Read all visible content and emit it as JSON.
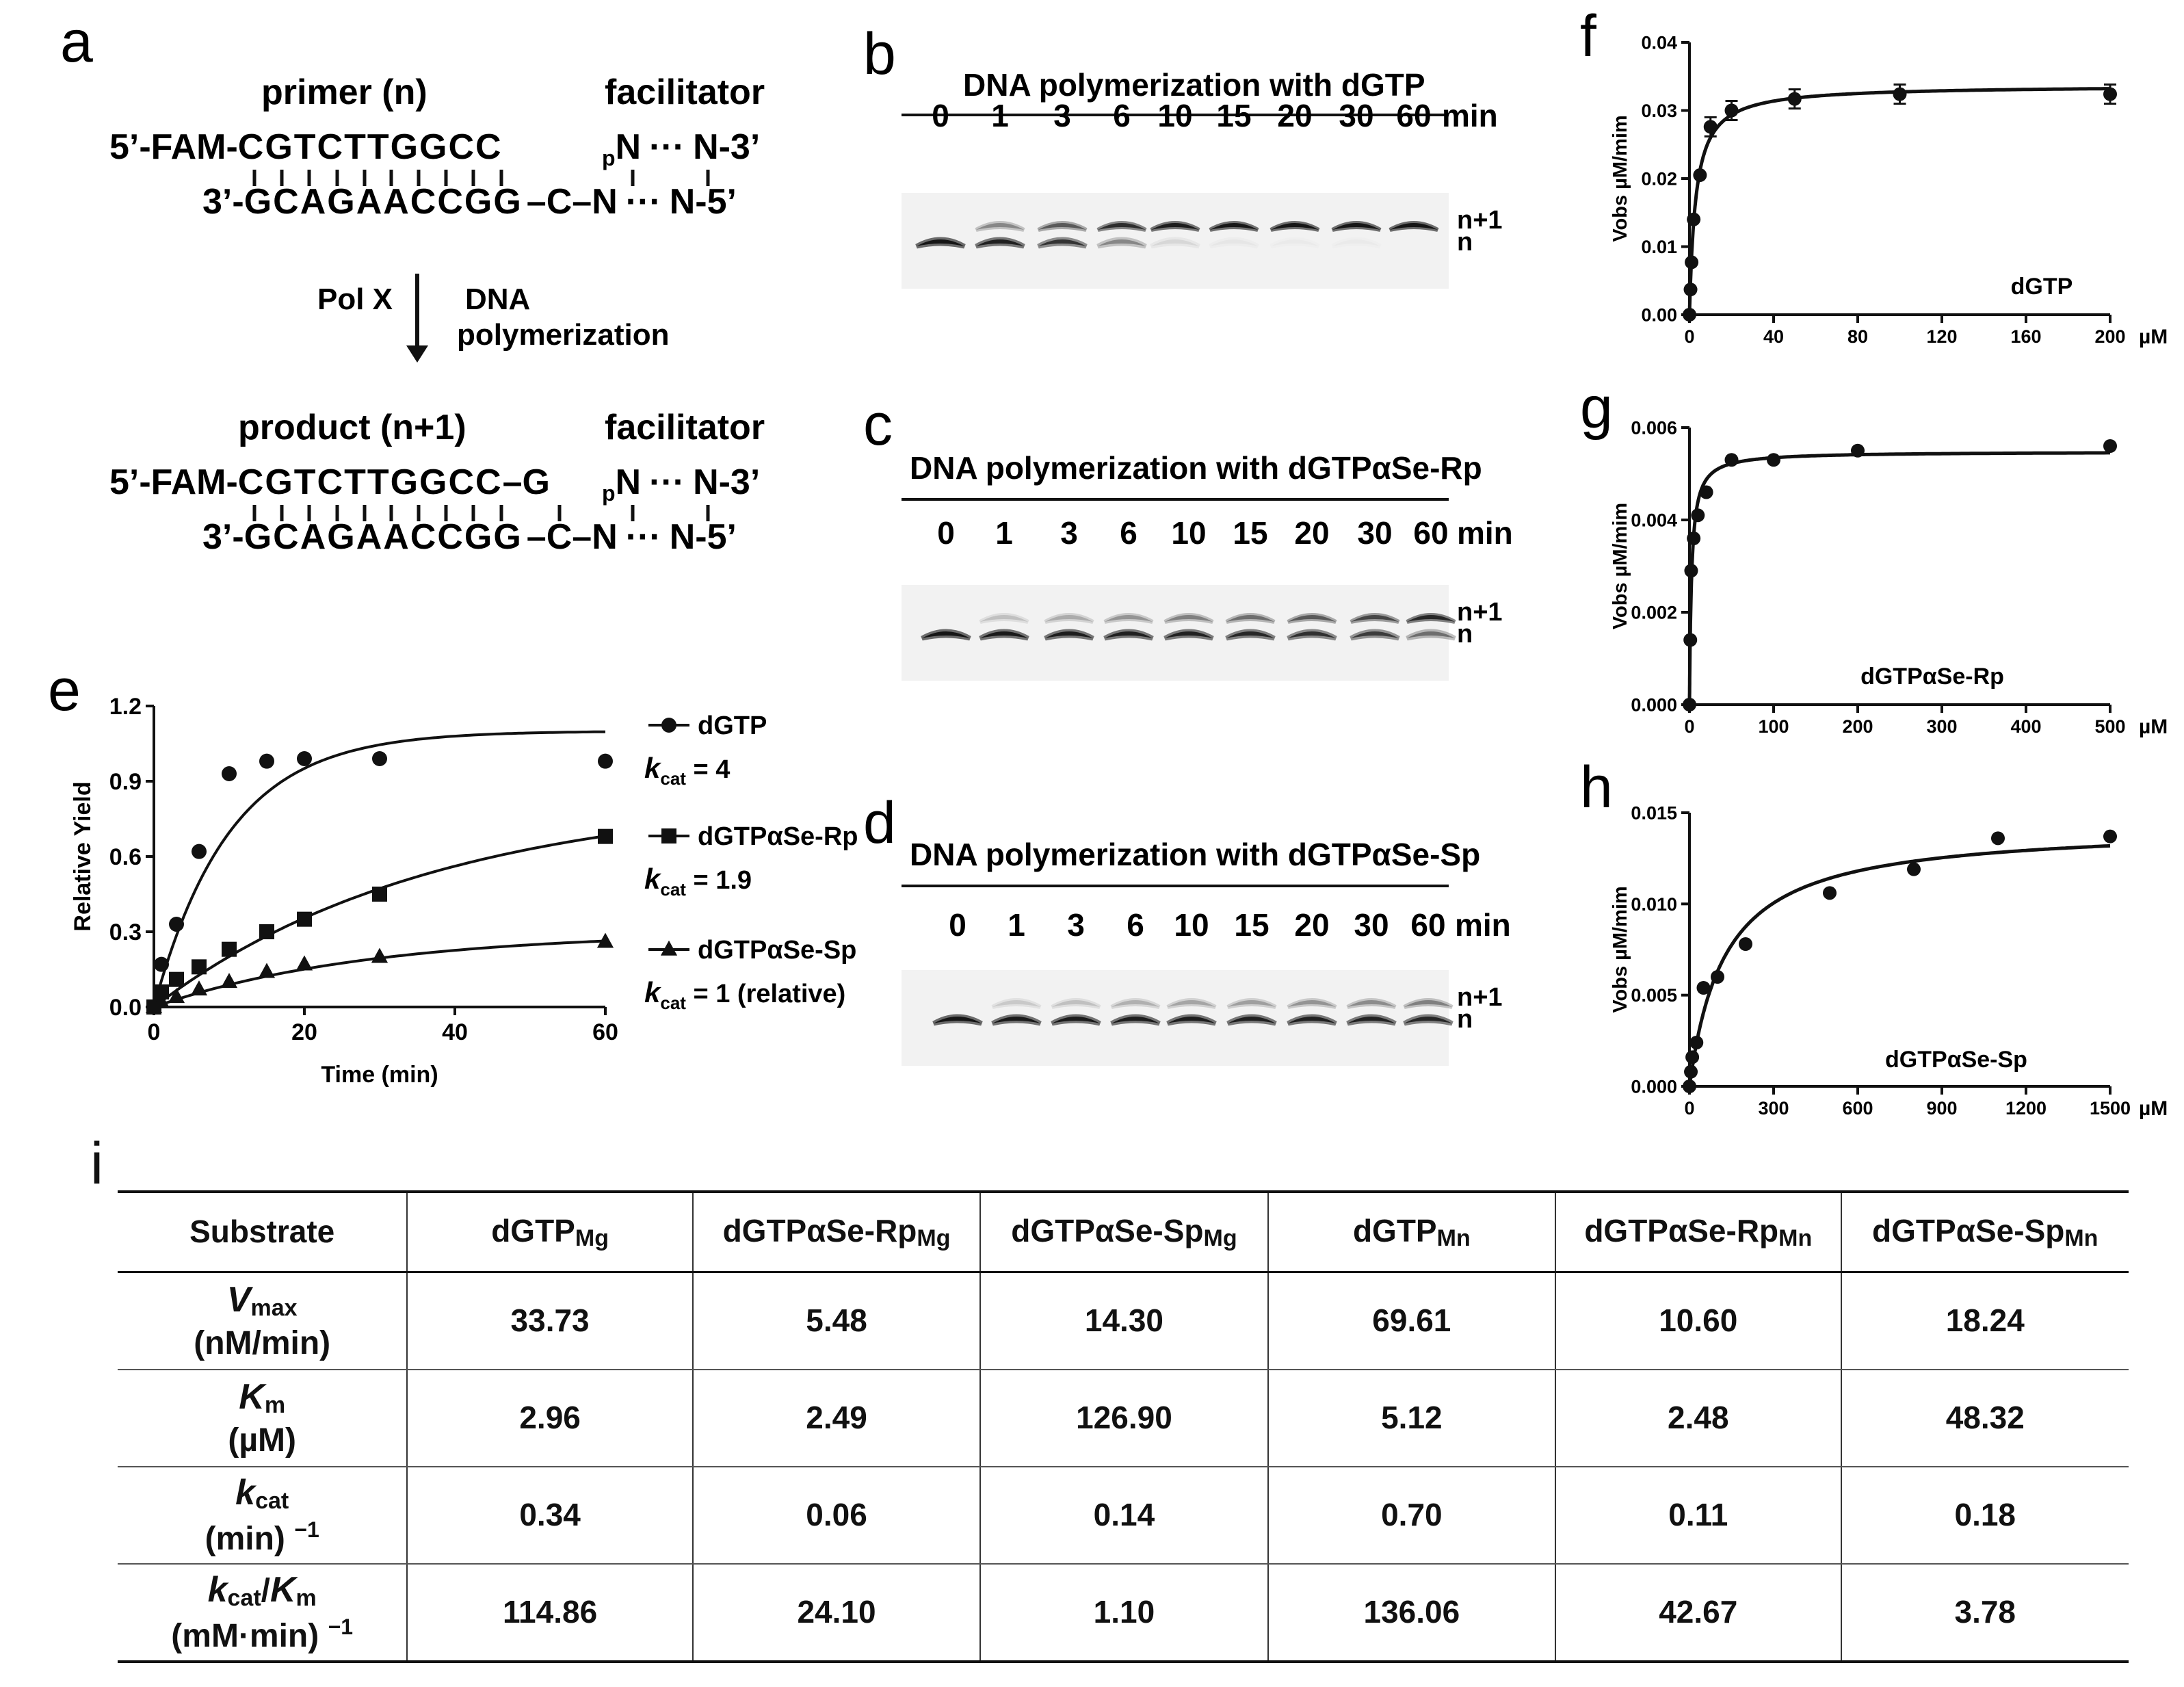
{
  "panel_labels": {
    "a": "a",
    "b": "b",
    "c": "c",
    "d": "d",
    "e": "e",
    "f": "f",
    "g": "g",
    "h": "h",
    "i": "i"
  },
  "panel_a": {
    "primer_label": "primer (n)",
    "facilitator_label": "facilitator",
    "product_label": "product (n+1)",
    "strand1_prefix": "5’-FAM-",
    "primer_seq": "CGTCTTGGCC",
    "template_prefix": "3’-",
    "template_seq": "GCAGAACCGG",
    "template_c": "C",
    "template_n": "N",
    "template_suffix": "N-5’",
    "facilitator_p": "p",
    "facilitator_n": "N",
    "facilitator_suffix": "N-3’",
    "dots": "···",
    "added_base": "G",
    "enzyme": "Pol X",
    "reaction_line1": "DNA",
    "reaction_line2": "polymerization"
  },
  "gels": [
    {
      "title": "DNA polymerization with dGTP",
      "times": [
        "0",
        "1",
        "3",
        "6",
        "10",
        "15",
        "20",
        "30",
        "60"
      ],
      "unit": "min",
      "band_upper": "n+1",
      "band_lower": "n",
      "upper_intensity": [
        0,
        0.35,
        0.55,
        0.8,
        0.92,
        0.97,
        0.98,
        0.98,
        1.0
      ],
      "lower_intensity": [
        1.0,
        0.9,
        0.75,
        0.35,
        0.08,
        0.03,
        0.02,
        0.02,
        0.01
      ]
    },
    {
      "title": "DNA polymerization with dGTPαSe-Rp",
      "times": [
        "0",
        "1",
        "3",
        "6",
        "10",
        "15",
        "20",
        "30",
        "60"
      ],
      "unit": "min",
      "band_upper": "n+1",
      "band_lower": "n",
      "upper_intensity": [
        0,
        0.15,
        0.22,
        0.3,
        0.38,
        0.45,
        0.55,
        0.65,
        0.85
      ],
      "lower_intensity": [
        1.0,
        0.95,
        0.92,
        0.9,
        0.88,
        0.85,
        0.78,
        0.7,
        0.45
      ]
    },
    {
      "title": "DNA polymerization with dGTPαSe-Sp",
      "times": [
        "0",
        "1",
        "3",
        "6",
        "10",
        "15",
        "20",
        "30",
        "60"
      ],
      "unit": "min",
      "band_upper": "n+1",
      "band_lower": "n",
      "upper_intensity": [
        0,
        0.12,
        0.15,
        0.2,
        0.24,
        0.26,
        0.3,
        0.33,
        0.38
      ],
      "lower_intensity": [
        1.0,
        0.95,
        0.95,
        0.93,
        0.92,
        0.9,
        0.9,
        0.88,
        0.85
      ]
    }
  ],
  "chart_data": [
    {
      "type": "scatter",
      "panel": "e",
      "xlabel": "Time (min)",
      "ylabel": "Relative Yield",
      "xlim": [
        0,
        60
      ],
      "ylim": [
        0,
        1.2
      ],
      "xticks": [
        0,
        20,
        40,
        60
      ],
      "yticks": [
        0.0,
        0.3,
        0.6,
        0.9,
        1.2
      ],
      "ytick_labels": [
        "0.0",
        "0.3",
        "0.6",
        "0.9",
        "1.2"
      ],
      "series": [
        {
          "name": "dGTP",
          "marker": "circle",
          "kcat_label": "k",
          "kcat_sub": "cat",
          "kcat_text": " = 4",
          "x": [
            0,
            1,
            3,
            6,
            10,
            15,
            20,
            30,
            60
          ],
          "y": [
            0.0,
            0.17,
            0.33,
            0.62,
            0.93,
            0.98,
            0.99,
            0.99,
            0.98
          ],
          "fit": {
            "a": 1.1,
            "k": 0.1
          }
        },
        {
          "name": "dGTPαSe-Rp",
          "marker": "square",
          "kcat_label": "k",
          "kcat_sub": "cat",
          "kcat_text": " = 1.9",
          "x": [
            0,
            1,
            3,
            6,
            10,
            15,
            20,
            30,
            60
          ],
          "y": [
            0.0,
            0.06,
            0.11,
            0.16,
            0.23,
            0.3,
            0.35,
            0.45,
            0.68
          ],
          "fit": {
            "a": 0.85,
            "k": 0.027
          }
        },
        {
          "name": "dGTPαSe-Sp",
          "marker": "triangle",
          "kcat_label": "k",
          "kcat_sub": "cat",
          "kcat_text": " = 1 (relative)",
          "x": [
            0,
            1,
            3,
            6,
            10,
            15,
            20,
            30,
            60
          ],
          "y": [
            0.0,
            0.02,
            0.04,
            0.07,
            0.1,
            0.14,
            0.17,
            0.2,
            0.26
          ],
          "fit": {
            "a": 0.3,
            "k": 0.035
          }
        }
      ]
    },
    {
      "type": "scatter",
      "panel": "f",
      "label": "dGTP",
      "ylabel": "Vobs µM/mim",
      "unit": "µM",
      "xlim": [
        0,
        200
      ],
      "ylim": [
        0,
        0.04
      ],
      "xticks": [
        0,
        40,
        80,
        120,
        160,
        200
      ],
      "yticks": [
        0.0,
        0.01,
        0.02,
        0.03,
        0.04
      ],
      "ytick_labels": [
        "0.00",
        "0.01",
        "0.02",
        "0.03",
        "0.04"
      ],
      "x": [
        0,
        0.5,
        1,
        2,
        5,
        10,
        20,
        50,
        100,
        200
      ],
      "y": [
        0.0,
        0.0037,
        0.0077,
        0.014,
        0.0205,
        0.0276,
        0.03,
        0.0317,
        0.0324,
        0.0324
      ],
      "fit": {
        "vmax": 0.0337,
        "km": 2.96
      }
    },
    {
      "type": "scatter",
      "panel": "g",
      "label": "dGTPαSe-Rp",
      "ylabel": "Vobs µM/mim",
      "unit": "µM",
      "xlim": [
        0,
        500
      ],
      "ylim": [
        0,
        0.006
      ],
      "xticks": [
        0,
        100,
        200,
        300,
        400,
        500
      ],
      "yticks": [
        0.0,
        0.002,
        0.004,
        0.006
      ],
      "ytick_labels": [
        "0.000",
        "0.002",
        "0.004",
        "0.006"
      ],
      "x": [
        0,
        1,
        2,
        5,
        10,
        20,
        50,
        100,
        200,
        500
      ],
      "y": [
        0.0,
        0.0014,
        0.0029,
        0.0036,
        0.0041,
        0.0046,
        0.0053,
        0.0053,
        0.0055,
        0.0056
      ],
      "fit": {
        "vmax": 0.00548,
        "km": 2.49
      }
    },
    {
      "type": "scatter",
      "panel": "h",
      "label": "dGTPαSe-Sp",
      "ylabel": "Vobs µM/mim",
      "unit": "µM",
      "xlim": [
        0,
        1500
      ],
      "ylim": [
        0,
        0.015
      ],
      "xticks": [
        0,
        300,
        600,
        900,
        1200,
        1500
      ],
      "yticks": [
        0.0,
        0.005,
        0.01,
        0.015
      ],
      "ytick_labels": [
        "0.000",
        "0.005",
        "0.010",
        "0.015"
      ],
      "x": [
        0,
        5,
        10,
        25,
        50,
        100,
        200,
        500,
        800,
        1100,
        1500
      ],
      "y": [
        0.0,
        0.0008,
        0.0016,
        0.0024,
        0.0054,
        0.006,
        0.0078,
        0.0106,
        0.0119,
        0.0136,
        0.0137
      ],
      "fit": {
        "vmax": 0.0143,
        "km": 126.9
      }
    }
  ],
  "table": {
    "corner": "Substrate",
    "columns": [
      {
        "base": "dGTP",
        "sub": "Mg"
      },
      {
        "base": "dGTPαSe-Rp",
        "sub": "Mg"
      },
      {
        "base": "dGTPαSe-Sp",
        "sub": "Mg"
      },
      {
        "base": "dGTP",
        "sub": "Mn"
      },
      {
        "base": "dGTPαSe-Rp",
        "sub": "Mn"
      },
      {
        "base": "dGTPαSe-Sp",
        "sub": "Mn"
      }
    ],
    "rows": [
      {
        "sym": "V",
        "sym_sub": "max",
        "unit": "(nM/min)",
        "unit_sup": "",
        "values": [
          "33.73",
          "5.48",
          "14.30",
          "69.61",
          "10.60",
          "18.24"
        ]
      },
      {
        "sym": "K",
        "sym_sub": "m",
        "unit": "(µM)",
        "unit_sup": "",
        "values": [
          "2.96",
          "2.49",
          "126.90",
          "5.12",
          "2.48",
          "48.32"
        ]
      },
      {
        "sym": "k",
        "sym_sub": "cat",
        "unit": "(min)",
        "unit_sup": "−1",
        "values": [
          "0.34",
          "0.06",
          "0.14",
          "0.70",
          "0.11",
          "0.18"
        ]
      },
      {
        "sym": "k",
        "sym_sub": "cat",
        "sym2": "/",
        "sym3": "K",
        "sym3_sub": "m",
        "unit": "(mM·min)",
        "unit_sup": "−1",
        "values": [
          "114.86",
          "24.10",
          "1.10",
          "136.06",
          "42.67",
          "3.78"
        ]
      }
    ]
  }
}
